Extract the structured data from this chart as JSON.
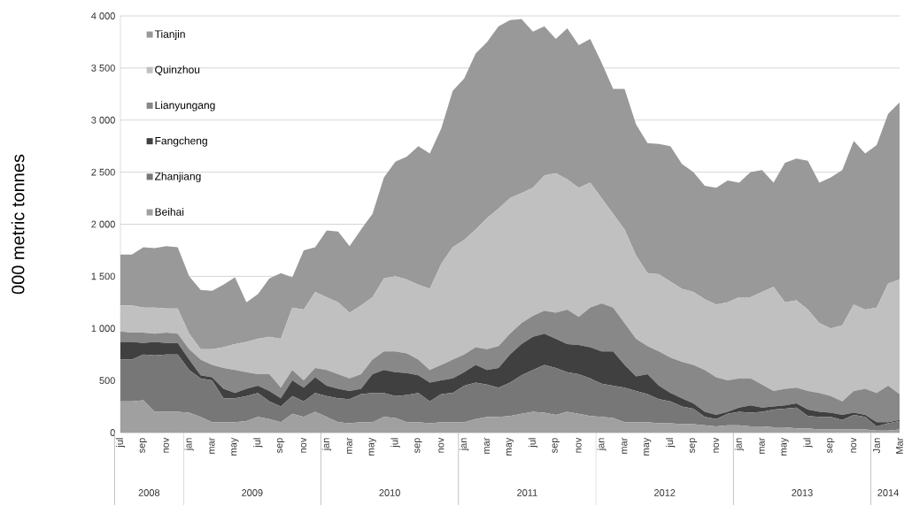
{
  "chart_data": {
    "type": "area",
    "stacked": true,
    "ylabel": "000 metric tonnes",
    "grid": "y",
    "legend": "top left",
    "ylim": [
      0,
      4000
    ],
    "yticks": [
      0,
      {
        "value": 500,
        "label": "500"
      },
      {
        "value": 1000,
        "label": "1 000"
      },
      {
        "value": 1500,
        "label": "1 500"
      },
      {
        "value": 2000,
        "label": "2 000"
      },
      {
        "value": 2500,
        "label": "2 500"
      },
      {
        "value": 3000,
        "label": "3 000"
      },
      {
        "value": 3500,
        "label": "3 500"
      },
      {
        "value": 4000,
        "label": "4 000"
      }
    ],
    "categories": [
      "jul",
      null,
      "sep",
      null,
      "nov",
      null,
      "jan",
      null,
      "mar",
      null,
      "may",
      null,
      "jul",
      null,
      "sep",
      null,
      "nov",
      null,
      "jan",
      null,
      "mar",
      null,
      "may",
      null,
      "jul",
      null,
      "sep",
      null,
      "nov",
      null,
      "jan",
      null,
      "mar",
      null,
      "may",
      null,
      "jul",
      null,
      "sep",
      null,
      "nov",
      null,
      "jan",
      null,
      "mar",
      null,
      "may",
      null,
      "jul",
      null,
      "sep",
      null,
      "nov",
      null,
      "jan",
      null,
      "mar",
      null,
      "may",
      null,
      "jul",
      null,
      "sep",
      null,
      "nov",
      null,
      "Jan",
      null,
      "Mar"
    ],
    "annotations": [
      "2008",
      "2009",
      "2010",
      "2011",
      "2012",
      "2013",
      "2014"
    ],
    "series": [
      {
        "name": "Beihai",
        "color": "#a0a0a0",
        "values": [
          300,
          300,
          310,
          200,
          200,
          200,
          190,
          150,
          100,
          100,
          100,
          110,
          150,
          130,
          100,
          180,
          150,
          200,
          150,
          100,
          90,
          100,
          100,
          150,
          140,
          100,
          100,
          90,
          100,
          100,
          100,
          130,
          150,
          150,
          160,
          180,
          200,
          190,
          170,
          200,
          180,
          160,
          150,
          140,
          100,
          100,
          100,
          90,
          90,
          80,
          80,
          70,
          60,
          70,
          70,
          60,
          60,
          50,
          50,
          40,
          40,
          30,
          30,
          30,
          30,
          30,
          20,
          20,
          30
        ]
      },
      {
        "name": "Zhanjiang",
        "color": "#777777",
        "values": [
          400,
          400,
          440,
          540,
          550,
          550,
          410,
          370,
          400,
          230,
          230,
          240,
          230,
          170,
          150,
          170,
          150,
          180,
          200,
          230,
          230,
          270,
          280,
          230,
          210,
          260,
          280,
          210,
          270,
          280,
          350,
          350,
          310,
          280,
          320,
          370,
          400,
          460,
          450,
          380,
          380,
          360,
          320,
          310,
          330,
          300,
          270,
          230,
          210,
          170,
          150,
          80,
          70,
          110,
          130,
          130,
          140,
          170,
          180,
          200,
          120,
          120,
          120,
          90,
          140,
          120,
          40,
          70,
          80
        ]
      },
      {
        "name": "Fangcheng",
        "color": "#404040",
        "values": [
          170,
          170,
          110,
          130,
          110,
          110,
          100,
          30,
          30,
          90,
          50,
          70,
          70,
          100,
          80,
          150,
          130,
          150,
          100,
          90,
          80,
          50,
          180,
          220,
          230,
          210,
          170,
          180,
          130,
          140,
          130,
          170,
          140,
          190,
          270,
          300,
          320,
          300,
          280,
          270,
          280,
          300,
          310,
          330,
          220,
          140,
          190,
          130,
          80,
          80,
          50,
          50,
          40,
          20,
          40,
          70,
          40,
          30,
          30,
          40,
          60,
          50,
          40,
          50,
          20,
          20,
          40,
          10,
          10
        ]
      },
      {
        "name": "Lianyungang",
        "color": "#888888",
        "values": [
          100,
          90,
          100,
          80,
          100,
          90,
          100,
          150,
          120,
          200,
          220,
          160,
          110,
          160,
          100,
          100,
          70,
          90,
          150,
          140,
          120,
          140,
          140,
          180,
          200,
          190,
          150,
          120,
          150,
          180,
          170,
          170,
          200,
          210,
          200,
          200,
          200,
          220,
          250,
          330,
          270,
          380,
          460,
          420,
          400,
          360,
          270,
          330,
          340,
          350,
          370,
          400,
          360,
          300,
          280,
          260,
          220,
          150,
          160,
          150,
          180,
          180,
          160,
          130,
          210,
          250,
          280,
          350,
          250
        ]
      },
      {
        "name": "Quinzhou",
        "color": "#c0c0c0",
        "values": [
          250,
          260,
          240,
          250,
          230,
          240,
          150,
          100,
          150,
          200,
          250,
          290,
          340,
          360,
          470,
          600,
          680,
          730,
          700,
          690,
          630,
          660,
          600,
          700,
          720,
          710,
          720,
          780,
          970,
          1080,
          1100,
          1130,
          1260,
          1320,
          1300,
          1250,
          1230,
          1300,
          1340,
          1250,
          1240,
          1200,
          1010,
          900,
          900,
          800,
          700,
          740,
          730,
          700,
          700,
          680,
          700,
          750,
          780,
          780,
          890,
          1000,
          830,
          840,
          780,
          670,
          650,
          730,
          830,
          760,
          820,
          980,
          1100
        ]
      },
      {
        "name": "Tianjin",
        "color": "#999999",
        "values": [
          490,
          490,
          580,
          570,
          600,
          590,
          550,
          570,
          560,
          600,
          640,
          380,
          430,
          560,
          630,
          290,
          570,
          430,
          640,
          680,
          640,
          730,
          800,
          970,
          1100,
          1180,
          1330,
          1300,
          1300,
          1500,
          1550,
          1690,
          1690,
          1750,
          1710,
          1670,
          1500,
          1430,
          1290,
          1450,
          1370,
          1380,
          1300,
          1200,
          1350,
          1260,
          1250,
          1250,
          1300,
          1200,
          1150,
          1090,
          1120,
          1170,
          1100,
          1200,
          1170,
          1000,
          1340,
          1360,
          1430,
          1350,
          1450,
          1490,
          1570,
          1500,
          1560,
          1630,
          1700
        ]
      }
    ]
  }
}
